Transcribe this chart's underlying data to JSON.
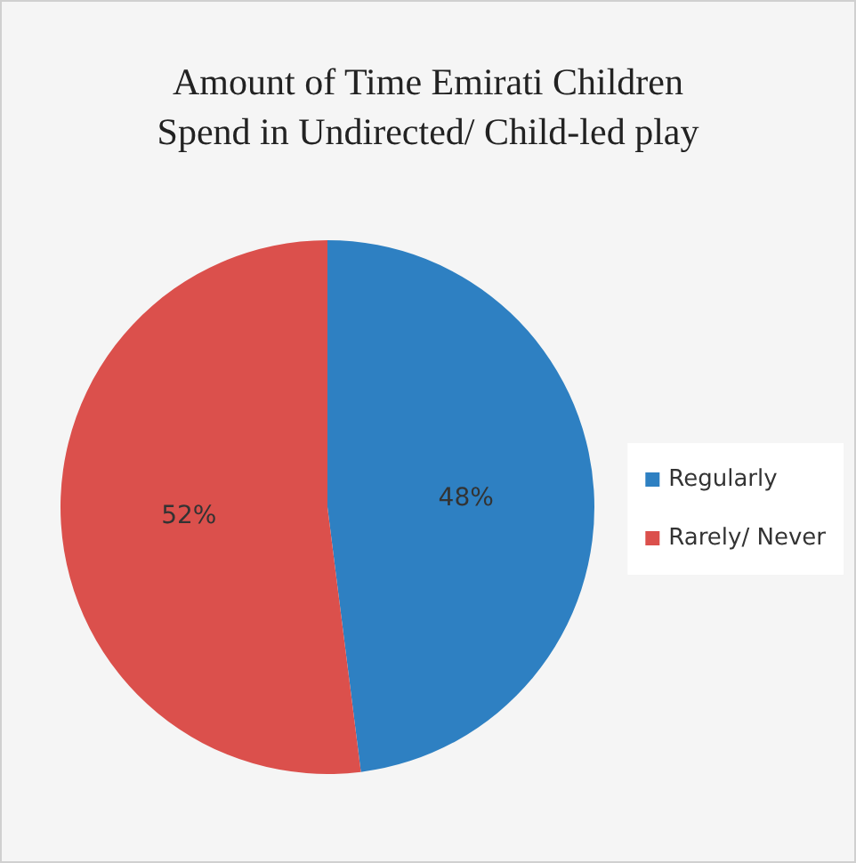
{
  "chart_data": {
    "type": "pie",
    "title": "Amount of Time Emirati Children\nSpend in Undirected/ Child-led play",
    "categories": [
      "Regularly",
      "Rarely/ Never"
    ],
    "values": [
      48,
      52
    ],
    "colors": [
      "#2e80c2",
      "#db504c"
    ],
    "value_labels": [
      "48%",
      "52%"
    ],
    "legend": "right"
  }
}
